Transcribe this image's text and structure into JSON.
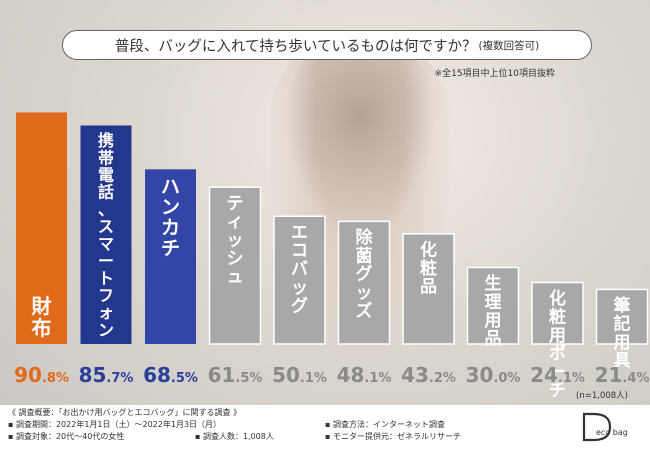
{
  "title": {
    "main": "普段、バッグに入れて持ち歩いているものは何ですか？",
    "sub": "(複数回答可)"
  },
  "note": "※全15項目中上位10項目抜粋",
  "sample_note": "(n=1,008人)",
  "colors": {
    "first": "#e06a1a",
    "second": "#24378f",
    "third": "#3346a8",
    "rest": "#a8a8a8",
    "first_pct": "#e06a1a",
    "second_pct": "#2b3e9a",
    "rest_pct": "#8a8a8a"
  },
  "chart_data": {
    "type": "bar",
    "categories": [
      "財布",
      "携帯電話、スマートフォン",
      "ハンカチ",
      "ティッシュ",
      "エコバッグ",
      "除菌グッズ",
      "化粧品",
      "生理用品",
      "化粧用ポーチ",
      "筆記用具"
    ],
    "values": [
      90.8,
      85.7,
      68.5,
      61.5,
      50.1,
      48.1,
      43.2,
      30.0,
      24.1,
      21.4
    ],
    "unit": "%"
  },
  "footer": {
    "overview": "《 調査概要：「お出かけ用バッグとエコバッグ」に関する調査 》",
    "period": "▪ 調査期間：2022年1月1日（土）～2022年1月3日（月）",
    "target": "▪ 調査対象：20代～40代の女性",
    "count": "▪ 調査人数：1,008人",
    "method": "▪ 調査方法：インターネット調査",
    "provider": "▪ モニター提供元：ゼネラルリサーチ"
  },
  "logo": {
    "letter": "D",
    "text": "eco bag"
  }
}
